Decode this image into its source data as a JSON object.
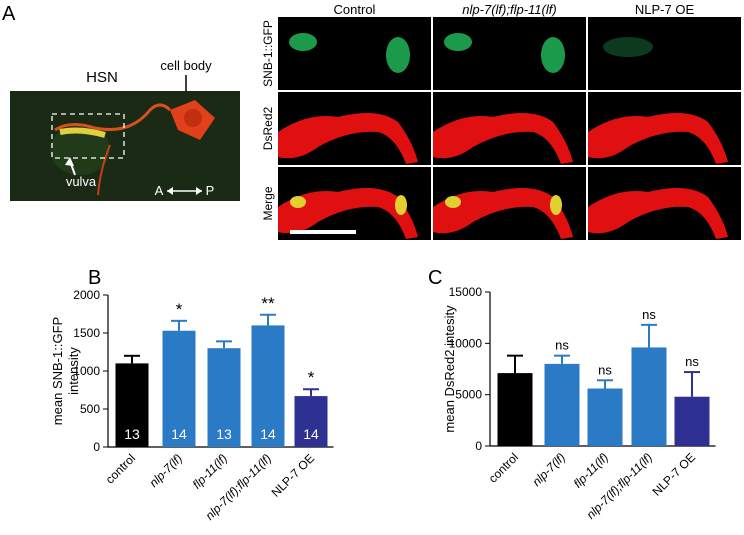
{
  "panel_a": {
    "letter": "A",
    "hsn": "HSN",
    "cell_body": "cell body",
    "vulva": "vulva",
    "axis_a": "A",
    "axis_p": "P",
    "columns": [
      "Control",
      "nlp-7(lf);flp-11(lf)",
      "NLP-7 OE"
    ],
    "rows": [
      "SNB-1::GFP",
      "DsRed2",
      "Merge"
    ]
  },
  "chart_data": [
    {
      "type": "bar",
      "letter": "B",
      "ylabel": [
        "mean SNB-1::GFP",
        "intensity"
      ],
      "categories": [
        "control",
        "nlp-7(lf)",
        "flp-11(lf)",
        "nlp-7(lf);flp-11(lf)",
        "NLP-7 OE"
      ],
      "values": [
        1100,
        1530,
        1300,
        1600,
        670
      ],
      "errors": [
        100,
        130,
        90,
        140,
        90
      ],
      "n": [
        13,
        14,
        13,
        14,
        14
      ],
      "significance": [
        null,
        "*",
        null,
        "**",
        "*"
      ],
      "colors": [
        "#000000",
        "#2b7ac6",
        "#2b7ac6",
        "#2b7ac6",
        "#2e3192"
      ],
      "ylim": [
        0,
        2000
      ],
      "yticks": [
        0,
        500,
        1000,
        1500,
        2000
      ]
    },
    {
      "type": "bar",
      "letter": "C",
      "ylabel": [
        "mean DsRed2 intesity"
      ],
      "categories": [
        "control",
        "nlp-7(lf)",
        "flp-11(lf)",
        "nlp-7(lf);flp-11(lf)",
        "NLP-7 OE"
      ],
      "values": [
        7100,
        8000,
        5600,
        9600,
        4800
      ],
      "errors": [
        1700,
        800,
        800,
        2200,
        2400
      ],
      "significance": [
        null,
        "ns",
        "ns",
        "ns",
        "ns"
      ],
      "colors": [
        "#000000",
        "#2b7ac6",
        "#2b7ac6",
        "#2b7ac6",
        "#2e3192"
      ],
      "ylim": [
        0,
        15000
      ],
      "yticks": [
        0,
        5000,
        10000,
        15000
      ]
    }
  ]
}
